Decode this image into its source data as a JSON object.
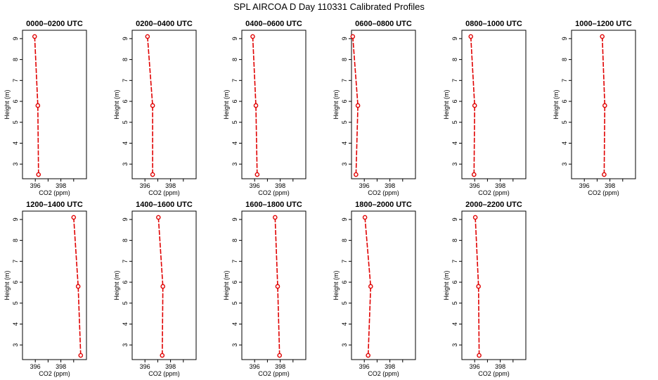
{
  "figure_title": "SPL AIRCOA D  Day 110331  Calibrated Profiles",
  "chart_data": [
    {
      "type": "line",
      "title": "0000–0200 UTC",
      "xlabel": "CO2 (ppm)",
      "ylabel": "Height (m)",
      "xlim": [
        395,
        400
      ],
      "ylim": [
        2.3,
        9.4
      ],
      "xticks": [
        396,
        398
      ],
      "yticks": [
        3,
        4,
        5,
        6,
        7,
        8,
        9
      ],
      "color": "#e00000",
      "points": [
        {
          "co2": 395.95,
          "height": 9.1
        },
        {
          "co2": 396.2,
          "height": 5.8
        },
        {
          "co2": 396.25,
          "height": 2.5
        }
      ]
    },
    {
      "type": "line",
      "title": "0200–0400 UTC",
      "xlabel": "CO2 (ppm)",
      "ylabel": "Height (m)",
      "xlim": [
        395,
        400
      ],
      "ylim": [
        2.3,
        9.4
      ],
      "xticks": [
        396,
        398
      ],
      "yticks": [
        3,
        4,
        5,
        6,
        7,
        8,
        9
      ],
      "color": "#e00000",
      "points": [
        {
          "co2": 396.2,
          "height": 9.1
        },
        {
          "co2": 396.6,
          "height": 5.8
        },
        {
          "co2": 396.6,
          "height": 2.5
        }
      ]
    },
    {
      "type": "line",
      "title": "0400–0600 UTC",
      "xlabel": "CO2 (ppm)",
      "ylabel": "Height (m)",
      "xlim": [
        395,
        400
      ],
      "ylim": [
        2.3,
        9.4
      ],
      "xticks": [
        396,
        398
      ],
      "yticks": [
        3,
        4,
        5,
        6,
        7,
        8,
        9
      ],
      "color": "#e00000",
      "points": [
        {
          "co2": 395.85,
          "height": 9.1
        },
        {
          "co2": 396.1,
          "height": 5.8
        },
        {
          "co2": 396.2,
          "height": 2.5
        }
      ]
    },
    {
      "type": "line",
      "title": "0600–0800 UTC",
      "xlabel": "CO2 (ppm)",
      "ylabel": "Height (m)",
      "xlim": [
        395,
        400
      ],
      "ylim": [
        2.3,
        9.4
      ],
      "xticks": [
        396,
        398
      ],
      "yticks": [
        3,
        4,
        5,
        6,
        7,
        8,
        9
      ],
      "color": "#e00000",
      "points": [
        {
          "co2": 395.1,
          "height": 9.1
        },
        {
          "co2": 395.5,
          "height": 5.8
        },
        {
          "co2": 395.35,
          "height": 2.5
        }
      ]
    },
    {
      "type": "line",
      "title": "0800–1000 UTC",
      "xlabel": "CO2 (ppm)",
      "ylabel": "Height (m)",
      "xlim": [
        395,
        400
      ],
      "ylim": [
        2.3,
        9.4
      ],
      "xticks": [
        396,
        398
      ],
      "yticks": [
        3,
        4,
        5,
        6,
        7,
        8,
        9
      ],
      "color": "#e00000",
      "points": [
        {
          "co2": 395.7,
          "height": 9.1
        },
        {
          "co2": 396.0,
          "height": 5.8
        },
        {
          "co2": 395.95,
          "height": 2.5
        }
      ]
    },
    {
      "type": "line",
      "title": "1000–1200 UTC",
      "xlabel": "CO2 (ppm)",
      "ylabel": "Height (m)",
      "xlim": [
        395,
        400
      ],
      "ylim": [
        2.3,
        9.4
      ],
      "xticks": [
        396,
        398
      ],
      "yticks": [
        3,
        4,
        5,
        6,
        7,
        8,
        9
      ],
      "color": "#e00000",
      "points": [
        {
          "co2": 397.4,
          "height": 9.1
        },
        {
          "co2": 397.6,
          "height": 5.8
        },
        {
          "co2": 397.55,
          "height": 2.5
        }
      ]
    },
    {
      "type": "line",
      "title": "1200–1400 UTC",
      "xlabel": "CO2 (ppm)",
      "ylabel": "Height (m)",
      "xlim": [
        395,
        400
      ],
      "ylim": [
        2.3,
        9.4
      ],
      "xticks": [
        396,
        398
      ],
      "yticks": [
        3,
        4,
        5,
        6,
        7,
        8,
        9
      ],
      "color": "#e00000",
      "points": [
        {
          "co2": 399.0,
          "height": 9.1
        },
        {
          "co2": 399.35,
          "height": 5.8
        },
        {
          "co2": 399.55,
          "height": 2.5
        }
      ]
    },
    {
      "type": "line",
      "title": "1400–1600 UTC",
      "xlabel": "CO2 (ppm)",
      "ylabel": "Height (m)",
      "xlim": [
        395,
        400
      ],
      "ylim": [
        2.3,
        9.4
      ],
      "xticks": [
        396,
        398
      ],
      "yticks": [
        3,
        4,
        5,
        6,
        7,
        8,
        9
      ],
      "color": "#e00000",
      "points": [
        {
          "co2": 397.05,
          "height": 9.1
        },
        {
          "co2": 397.4,
          "height": 5.8
        },
        {
          "co2": 397.35,
          "height": 2.5
        }
      ]
    },
    {
      "type": "line",
      "title": "1600–1800 UTC",
      "xlabel": "CO2 (ppm)",
      "ylabel": "Height (m)",
      "xlim": [
        395,
        400
      ],
      "ylim": [
        2.3,
        9.4
      ],
      "xticks": [
        396,
        398
      ],
      "yticks": [
        3,
        4,
        5,
        6,
        7,
        8,
        9
      ],
      "color": "#e00000",
      "points": [
        {
          "co2": 397.6,
          "height": 9.1
        },
        {
          "co2": 397.8,
          "height": 5.8
        },
        {
          "co2": 397.95,
          "height": 2.5
        }
      ]
    },
    {
      "type": "line",
      "title": "1800–2000 UTC",
      "xlabel": "CO2 (ppm)",
      "ylabel": "Height (m)",
      "xlim": [
        395,
        400
      ],
      "ylim": [
        2.3,
        9.4
      ],
      "xticks": [
        396,
        398
      ],
      "yticks": [
        3,
        4,
        5,
        6,
        7,
        8,
        9
      ],
      "color": "#e00000",
      "points": [
        {
          "co2": 396.05,
          "height": 9.1
        },
        {
          "co2": 396.5,
          "height": 5.8
        },
        {
          "co2": 396.3,
          "height": 2.5
        }
      ]
    },
    {
      "type": "line",
      "title": "2000–2200 UTC",
      "xlabel": "CO2 (ppm)",
      "ylabel": "Height (m)",
      "xlim": [
        395,
        400
      ],
      "ylim": [
        2.3,
        9.4
      ],
      "xticks": [
        396,
        398
      ],
      "yticks": [
        3,
        4,
        5,
        6,
        7,
        8,
        9
      ],
      "color": "#e00000",
      "points": [
        {
          "co2": 396.05,
          "height": 9.1
        },
        {
          "co2": 396.3,
          "height": 5.8
        },
        {
          "co2": 396.35,
          "height": 2.5
        }
      ]
    }
  ]
}
